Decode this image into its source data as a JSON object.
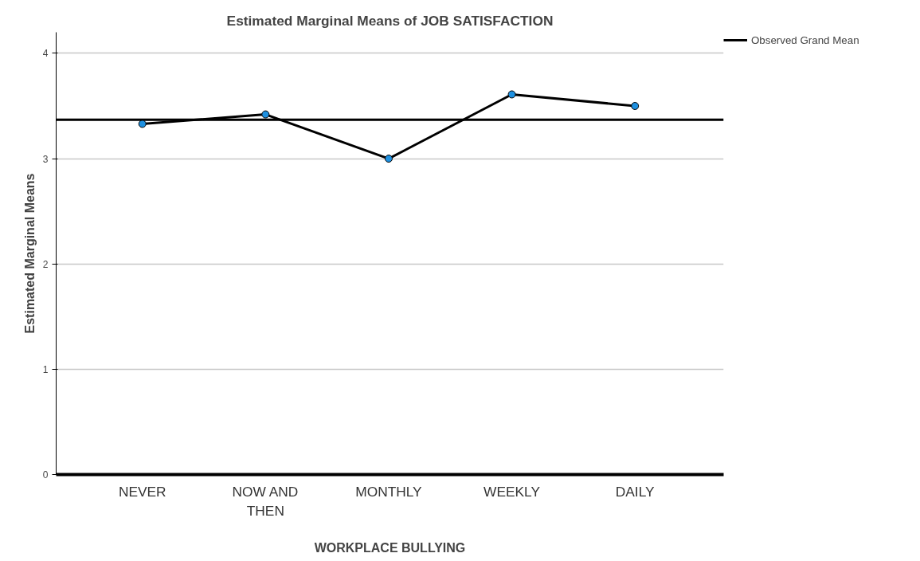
{
  "chart_data": {
    "type": "line",
    "title": "Estimated Marginal Means of JOB SATISFACTION",
    "xlabel": "WORKPLACE BULLYING",
    "ylabel": "Estimated Marginal Means",
    "categories": [
      "NEVER",
      "NOW AND THEN",
      "MONTHLY",
      "WEEKLY",
      "DAILY"
    ],
    "series": [
      {
        "color": "#000000",
        "values": [
          3.33,
          3.42,
          3.0,
          3.61,
          3.5
        ]
      }
    ],
    "ylim": [
      0,
      4.2
    ],
    "yticks": [
      0,
      1,
      2,
      3,
      4
    ],
    "grid": "y",
    "marker": "circle",
    "legend": "top right",
    "ref_lines": [
      {
        "axis": "y",
        "value": 3.37,
        "label": "Observed Grand Mean",
        "color": "#000000"
      }
    ]
  }
}
